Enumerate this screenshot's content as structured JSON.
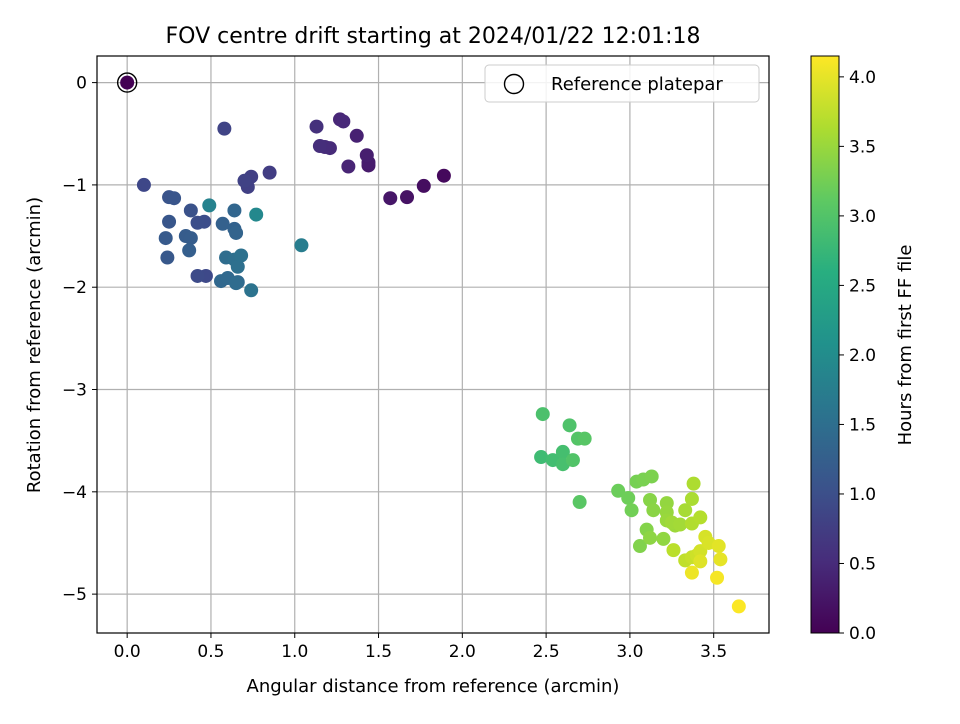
{
  "chart_data": {
    "type": "scatter",
    "title": "FOV centre drift starting at 2024/01/22 12:01:18",
    "xlabel": "Angular distance from reference (arcmin)",
    "ylabel": "Rotation from reference (arcmin)",
    "xlim": [
      -0.18,
      3.83
    ],
    "ylim": [
      -5.38,
      0.26
    ],
    "xticks": [
      0.0,
      0.5,
      1.0,
      1.5,
      2.0,
      2.5,
      3.0,
      3.5
    ],
    "xtick_labels": [
      "0.0",
      "0.5",
      "1.0",
      "1.5",
      "2.0",
      "2.5",
      "3.0",
      "3.5"
    ],
    "yticks": [
      0,
      -1,
      -2,
      -3,
      -4,
      -5
    ],
    "ytick_labels": [
      "0",
      "−1",
      "−2",
      "−3",
      "−4",
      "−5"
    ],
    "grid": true,
    "legend": {
      "position": "upper-right",
      "entries": [
        "Reference platepar"
      ]
    },
    "colorbar": {
      "label": "Hours from first FF file",
      "range": [
        0.0,
        4.15
      ],
      "colormap": "viridis",
      "ticks": [
        0.0,
        0.5,
        1.0,
        1.5,
        2.0,
        2.5,
        3.0,
        3.5,
        4.0
      ],
      "tick_labels": [
        "0.0",
        "0.5",
        "1.0",
        "1.5",
        "2.0",
        "2.5",
        "3.0",
        "3.5",
        "4.0"
      ]
    },
    "reference": {
      "name": "Reference platepar",
      "x": 0.0,
      "y": 0.0,
      "c": 0.0
    },
    "points": [
      [
        1.89,
        -0.91,
        0.1
      ],
      [
        1.77,
        -1.01,
        0.15
      ],
      [
        1.67,
        -1.12,
        0.2
      ],
      [
        1.57,
        -1.13,
        0.25
      ],
      [
        1.44,
        -0.81,
        0.3
      ],
      [
        1.44,
        -0.78,
        0.32
      ],
      [
        1.43,
        -0.71,
        0.35
      ],
      [
        1.37,
        -0.52,
        0.38
      ],
      [
        1.32,
        -0.82,
        0.42
      ],
      [
        1.27,
        -0.36,
        0.45
      ],
      [
        1.29,
        -0.38,
        0.48
      ],
      [
        1.21,
        -0.64,
        0.5
      ],
      [
        1.18,
        -0.63,
        0.52
      ],
      [
        1.15,
        -0.62,
        0.55
      ],
      [
        1.13,
        -0.43,
        0.58
      ],
      [
        0.85,
        -0.88,
        0.75
      ],
      [
        0.74,
        -0.92,
        0.78
      ],
      [
        0.72,
        -1.02,
        0.8
      ],
      [
        0.7,
        -0.96,
        0.82
      ],
      [
        0.58,
        -0.45,
        0.85
      ],
      [
        0.1,
        -1.0,
        0.9
      ],
      [
        0.47,
        -1.89,
        0.92
      ],
      [
        0.42,
        -1.89,
        0.95
      ],
      [
        0.46,
        -1.36,
        0.98
      ],
      [
        0.42,
        -1.37,
        1.0
      ],
      [
        0.38,
        -1.25,
        1.05
      ],
      [
        0.25,
        -1.12,
        1.08
      ],
      [
        0.28,
        -1.13,
        1.1
      ],
      [
        0.25,
        -1.36,
        1.12
      ],
      [
        0.24,
        -1.71,
        1.15
      ],
      [
        0.23,
        -1.52,
        1.18
      ],
      [
        0.35,
        -1.5,
        1.2
      ],
      [
        0.38,
        -1.52,
        1.22
      ],
      [
        0.37,
        -1.64,
        1.25
      ],
      [
        0.57,
        -1.38,
        1.28
      ],
      [
        0.64,
        -1.43,
        1.3
      ],
      [
        0.65,
        -1.47,
        1.32
      ],
      [
        0.64,
        -1.25,
        1.35
      ],
      [
        0.56,
        -1.94,
        1.38
      ],
      [
        0.6,
        -1.91,
        1.4
      ],
      [
        0.66,
        -1.95,
        1.42
      ],
      [
        0.65,
        -1.96,
        1.45
      ],
      [
        0.59,
        -1.71,
        1.48
      ],
      [
        0.64,
        -1.73,
        1.5
      ],
      [
        0.66,
        -1.8,
        1.52
      ],
      [
        0.68,
        -1.69,
        1.55
      ],
      [
        0.74,
        -2.03,
        1.58
      ],
      [
        1.04,
        -1.59,
        1.75
      ],
      [
        0.49,
        -1.2,
        1.85
      ],
      [
        0.77,
        -1.29,
        1.95
      ],
      [
        2.48,
        -3.24,
        2.95
      ],
      [
        2.47,
        -3.66,
        2.85
      ],
      [
        2.54,
        -3.69,
        2.88
      ],
      [
        2.6,
        -3.61,
        2.9
      ],
      [
        2.6,
        -3.73,
        2.92
      ],
      [
        2.64,
        -3.35,
        2.98
      ],
      [
        2.66,
        -3.69,
        3.0
      ],
      [
        2.69,
        -3.48,
        3.02
      ],
      [
        2.73,
        -3.48,
        3.04
      ],
      [
        2.7,
        -4.1,
        3.06
      ],
      [
        2.93,
        -3.99,
        3.2
      ],
      [
        2.99,
        -4.06,
        3.22
      ],
      [
        3.01,
        -4.18,
        3.25
      ],
      [
        3.04,
        -3.9,
        3.28
      ],
      [
        3.08,
        -3.88,
        3.3
      ],
      [
        3.13,
        -3.85,
        3.32
      ],
      [
        3.06,
        -4.53,
        3.35
      ],
      [
        3.1,
        -4.37,
        3.37
      ],
      [
        3.12,
        -4.08,
        3.39
      ],
      [
        3.14,
        -4.18,
        3.41
      ],
      [
        3.12,
        -4.45,
        3.43
      ],
      [
        3.2,
        -4.46,
        3.45
      ],
      [
        3.22,
        -4.11,
        3.47
      ],
      [
        3.22,
        -4.2,
        3.49
      ],
      [
        3.22,
        -4.28,
        3.51
      ],
      [
        3.27,
        -4.33,
        3.53
      ],
      [
        3.25,
        -4.3,
        3.55
      ],
      [
        3.3,
        -4.32,
        3.57
      ],
      [
        3.33,
        -4.18,
        3.6
      ],
      [
        3.37,
        -4.07,
        3.62
      ],
      [
        3.38,
        -3.92,
        3.64
      ],
      [
        3.37,
        -4.31,
        3.66
      ],
      [
        3.42,
        -4.25,
        3.68
      ],
      [
        3.26,
        -4.57,
        3.72
      ],
      [
        3.33,
        -4.67,
        3.76
      ],
      [
        3.37,
        -4.64,
        3.8
      ],
      [
        3.4,
        -4.62,
        3.84
      ],
      [
        3.42,
        -4.58,
        3.88
      ],
      [
        3.45,
        -4.44,
        3.9
      ],
      [
        3.47,
        -4.5,
        3.92
      ],
      [
        3.42,
        -4.68,
        3.95
      ],
      [
        3.53,
        -4.53,
        3.98
      ],
      [
        3.54,
        -4.66,
        4.0
      ],
      [
        3.37,
        -4.79,
        4.05
      ],
      [
        3.52,
        -4.84,
        4.1
      ],
      [
        3.65,
        -5.12,
        4.14
      ]
    ]
  }
}
